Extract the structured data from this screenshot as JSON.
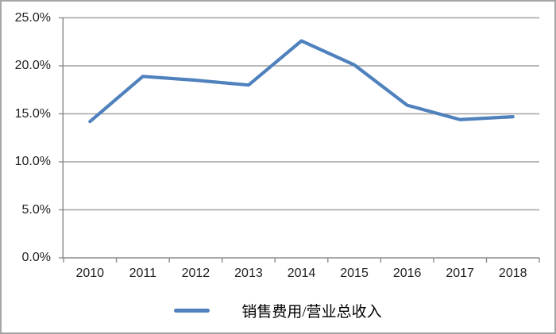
{
  "chart_data": {
    "type": "line",
    "title": "",
    "categories": [
      "2010",
      "2011",
      "2012",
      "2013",
      "2014",
      "2015",
      "2016",
      "2017",
      "2018"
    ],
    "series": [
      {
        "name": "销售费用/营业总收入",
        "color": "#4F81BD",
        "values": [
          14.2,
          18.9,
          18.5,
          18.0,
          22.6,
          20.1,
          15.9,
          14.4,
          14.7
        ]
      }
    ],
    "xlabel": "",
    "ylabel": "",
    "ylim": [
      0,
      25
    ],
    "y_tick_interval": 5,
    "y_tick_labels": [
      "0.0%",
      "5.0%",
      "10.0%",
      "15.0%",
      "20.0%",
      "25.0%"
    ],
    "grid": "horizontal",
    "legend_position": "bottom"
  },
  "legend": {
    "items": [
      {
        "label": "销售费用/营业总收入",
        "color": "#4F81BD"
      }
    ]
  },
  "colors": {
    "background": "#FFFFFF",
    "outer_border": "#A6A6A6",
    "gridline": "#A3A3A3",
    "axis": "#8C8C8C",
    "tick_text": "#1F1F1F",
    "line": "#4F81BD"
  }
}
